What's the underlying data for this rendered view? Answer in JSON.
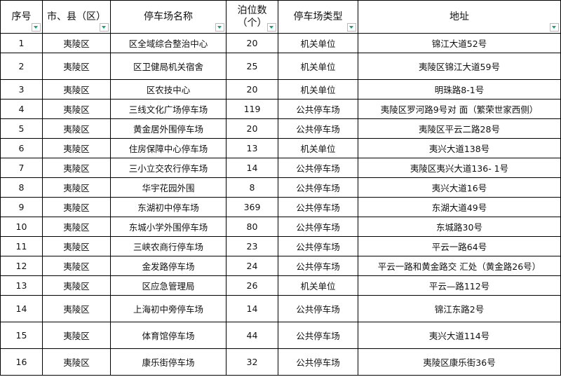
{
  "headers": [
    "序号",
    "市、县（区）",
    "停车场名称",
    "泊位数（个）",
    "停车场类型",
    "地址"
  ],
  "header_lines": {
    "capacity_line1": "泊位数",
    "capacity_line2": "（个）"
  },
  "filter_icon_color": "#1aa36a",
  "rows": [
    [
      "1",
      "夷陵区",
      "区全域综合整治中心",
      "20",
      "机关单位",
      "锦江大道52号"
    ],
    [
      "2",
      "夷陵区",
      "区卫健局机关宿舍",
      "25",
      "机关单位",
      "夷陵区锦江大道59号"
    ],
    [
      "3",
      "夷陵区",
      "区农技中心",
      "20",
      "机关单位",
      "明珠路8-1号"
    ],
    [
      "4",
      "夷陵区",
      "三线文化广场停车场",
      "119",
      "公共停车场",
      "夷陵区罗河路9号对 面（繁荣世家西侧）"
    ],
    [
      "5",
      "夷陵区",
      "黄金居外围停车场",
      "20",
      "公共停车场",
      "夷陵区平云二路28号"
    ],
    [
      "6",
      "夷陵区",
      "住房保障中心停车场",
      "13",
      "机关单位",
      "夷兴大道138号"
    ],
    [
      "7",
      "夷陵区",
      "三小立交农行停车场",
      "14",
      "公共停车场",
      "夷陵区夷兴大道136- 1号"
    ],
    [
      "8",
      "夷陵区",
      "华宇花园外围",
      "8",
      "公共停车场",
      "夷兴大道16号"
    ],
    [
      "9",
      "夷陵区",
      "东湖初中停车场",
      "369",
      "公共停车场",
      "东湖大道49号"
    ],
    [
      "10",
      "夷陵区",
      "东城小学外围停车场",
      "80",
      "公共停车场",
      "东城路30号"
    ],
    [
      "11",
      "夷陵区",
      "三峡农商行停车场",
      "23",
      "公共停车场",
      "平云一路64号"
    ],
    [
      "12",
      "夷陵区",
      "金发路停车场",
      "24",
      "公共停车场",
      "平云一路和黄金路交 汇处（黄金路26号）"
    ],
    [
      "13",
      "夷陵区",
      "区应急管理局",
      "26",
      "机关单位",
      "平云—路112号"
    ],
    [
      "14",
      "夷陵区",
      "上海初中旁停车场",
      "14",
      "公共停车场",
      "锦江东路2号"
    ],
    [
      "15",
      "夷陵区",
      "体育馆停车场",
      "44",
      "公共停车场",
      "夷兴大道114号"
    ],
    [
      "16",
      "夷陵区",
      "康乐街停车场",
      "32",
      "公共停车场",
      "夷陵区康乐街36号"
    ]
  ]
}
